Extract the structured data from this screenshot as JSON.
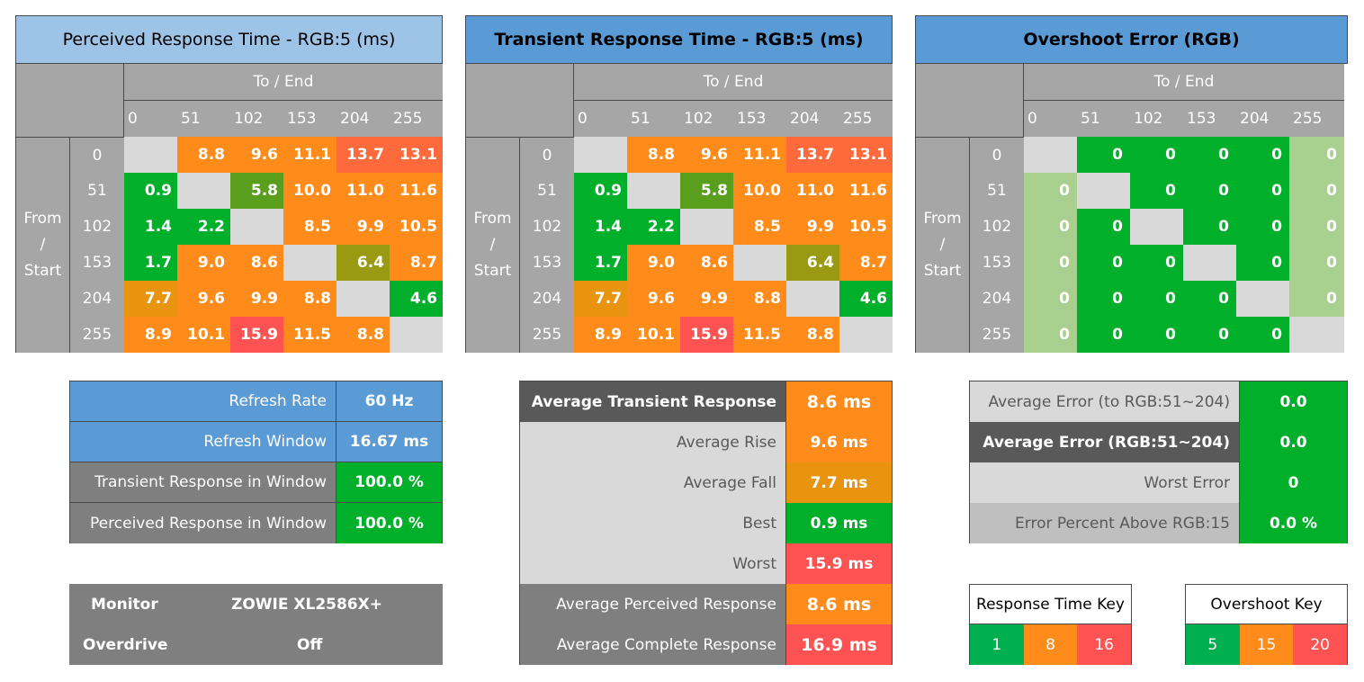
{
  "colors": {
    "gray_header": "#a6a6a6",
    "diag": "#d9d9d9",
    "green": "#00b02a",
    "light_green": "#a9d08e",
    "olive": "#9a9a12",
    "olive_green": "#5a9e1e",
    "amber": "#e8940e",
    "orange": "#ff8c1a",
    "orange_red": "#ff6a3c",
    "red": "#ff5252",
    "blue_light": "#9dc3e6",
    "blue": "#5b9bd5",
    "dark_gray": "#595959",
    "mid_gray": "#7f7f7f",
    "light_gray": "#d9d9d9"
  },
  "chart_data": [
    {
      "type": "heatmap",
      "title": "Perceived Response Time - RGB:5 (ms)",
      "xlabel": "To / End",
      "ylabel": "From / Start",
      "x_ticks": [
        "0",
        "51",
        "102",
        "153",
        "204",
        "255"
      ],
      "y_ticks": [
        "0",
        "51",
        "102",
        "153",
        "204",
        "255"
      ],
      "values": [
        [
          null,
          8.8,
          9.6,
          11.1,
          13.7,
          13.1
        ],
        [
          0.9,
          null,
          5.8,
          10.0,
          11.0,
          11.6
        ],
        [
          1.4,
          2.2,
          null,
          8.5,
          9.9,
          10.5
        ],
        [
          1.7,
          9.0,
          8.6,
          null,
          6.4,
          8.7
        ],
        [
          7.7,
          9.6,
          9.9,
          8.8,
          null,
          4.6
        ],
        [
          8.9,
          10.1,
          15.9,
          11.5,
          8.8,
          null
        ]
      ],
      "labels": [
        [
          "",
          "8.8",
          "9.6",
          "11.1",
          "13.7",
          "13.1"
        ],
        [
          "0.9",
          "",
          "5.8",
          "10.0",
          "11.0",
          "11.6"
        ],
        [
          "1.4",
          "2.2",
          "",
          "8.5",
          "9.9",
          "10.5"
        ],
        [
          "1.7",
          "9.0",
          "8.6",
          "",
          "6.4",
          "8.7"
        ],
        [
          "7.7",
          "9.6",
          "9.9",
          "8.8",
          "",
          "4.6"
        ],
        [
          "8.9",
          "10.1",
          "15.9",
          "11.5",
          "8.8",
          ""
        ]
      ]
    },
    {
      "type": "heatmap",
      "title": "Transient Response Time - RGB:5 (ms)",
      "xlabel": "To / End",
      "ylabel": "From / Start",
      "x_ticks": [
        "0",
        "51",
        "102",
        "153",
        "204",
        "255"
      ],
      "y_ticks": [
        "0",
        "51",
        "102",
        "153",
        "204",
        "255"
      ],
      "values": [
        [
          null,
          8.8,
          9.6,
          11.1,
          13.7,
          13.1
        ],
        [
          0.9,
          null,
          5.8,
          10.0,
          11.0,
          11.6
        ],
        [
          1.4,
          2.2,
          null,
          8.5,
          9.9,
          10.5
        ],
        [
          1.7,
          9.0,
          8.6,
          null,
          6.4,
          8.7
        ],
        [
          7.7,
          9.6,
          9.9,
          8.8,
          null,
          4.6
        ],
        [
          8.9,
          10.1,
          15.9,
          11.5,
          8.8,
          null
        ]
      ],
      "labels": [
        [
          "",
          "8.8",
          "9.6",
          "11.1",
          "13.7",
          "13.1"
        ],
        [
          "0.9",
          "",
          "5.8",
          "10.0",
          "11.0",
          "11.6"
        ],
        [
          "1.4",
          "2.2",
          "",
          "8.5",
          "9.9",
          "10.5"
        ],
        [
          "1.7",
          "9.0",
          "8.6",
          "",
          "6.4",
          "8.7"
        ],
        [
          "7.7",
          "9.6",
          "9.9",
          "8.8",
          "",
          "4.6"
        ],
        [
          "8.9",
          "10.1",
          "15.9",
          "11.5",
          "8.8",
          ""
        ]
      ]
    },
    {
      "type": "heatmap",
      "title": "Overshoot Error (RGB)",
      "xlabel": "To / End",
      "ylabel": "From / Start",
      "x_ticks": [
        "0",
        "51",
        "102",
        "153",
        "204",
        "255"
      ],
      "y_ticks": [
        "0",
        "51",
        "102",
        "153",
        "204",
        "255"
      ],
      "values": [
        [
          null,
          0,
          0,
          0,
          0,
          0
        ],
        [
          0,
          null,
          0,
          0,
          0,
          0
        ],
        [
          0,
          0,
          null,
          0,
          0,
          0
        ],
        [
          0,
          0,
          0,
          null,
          0,
          0
        ],
        [
          0,
          0,
          0,
          0,
          null,
          0
        ],
        [
          0,
          0,
          0,
          0,
          0,
          null
        ]
      ],
      "labels": [
        [
          "",
          "0",
          "0",
          "0",
          "0",
          "0"
        ],
        [
          "0",
          "",
          "0",
          "0",
          "0",
          "0"
        ],
        [
          "0",
          "0",
          "",
          "0",
          "0",
          "0"
        ],
        [
          "0",
          "0",
          "0",
          "",
          "0",
          "0"
        ],
        [
          "0",
          "0",
          "0",
          "0",
          "",
          "0"
        ],
        [
          "0",
          "0",
          "0",
          "0",
          "0",
          ""
        ]
      ]
    }
  ],
  "settings_table": [
    {
      "label": "Refresh Rate",
      "value": "60 Hz"
    },
    {
      "label": "Refresh Window",
      "value": "16.67 ms"
    },
    {
      "label": "Transient Response in Window",
      "value": "100.0 %"
    },
    {
      "label": "Perceived Response in Window",
      "value": "100.0 %"
    }
  ],
  "monitor_info": {
    "monitor_label": "Monitor",
    "monitor_value": "ZOWIE XL2586X+",
    "overdrive_label": "Overdrive",
    "overdrive_value": "Off"
  },
  "response_stats": [
    {
      "label": "Average Transient Response",
      "value": "8.6 ms"
    },
    {
      "label": "Average Rise",
      "value": "9.6 ms"
    },
    {
      "label": "Average Fall",
      "value": "7.7 ms"
    },
    {
      "label": "Best",
      "value": "0.9 ms"
    },
    {
      "label": "Worst",
      "value": "15.9 ms"
    },
    {
      "label": "Average Perceived Response",
      "value": "8.6 ms"
    },
    {
      "label": "Average Complete Response",
      "value": "16.9 ms"
    }
  ],
  "error_stats": [
    {
      "label": "Average Error (to RGB:51~204)",
      "value": "0.0"
    },
    {
      "label": "Average Error (RGB:51~204)",
      "value": "0.0"
    },
    {
      "label": "Worst Error",
      "value": "0"
    },
    {
      "label": "Error Percent Above RGB:15",
      "value": "0.0 %"
    }
  ],
  "response_key": {
    "title": "Response Time Key",
    "values": [
      "1",
      "8",
      "16"
    ]
  },
  "overshoot_key": {
    "title": "Overshoot Key",
    "values": [
      "5",
      "15",
      "20"
    ]
  }
}
